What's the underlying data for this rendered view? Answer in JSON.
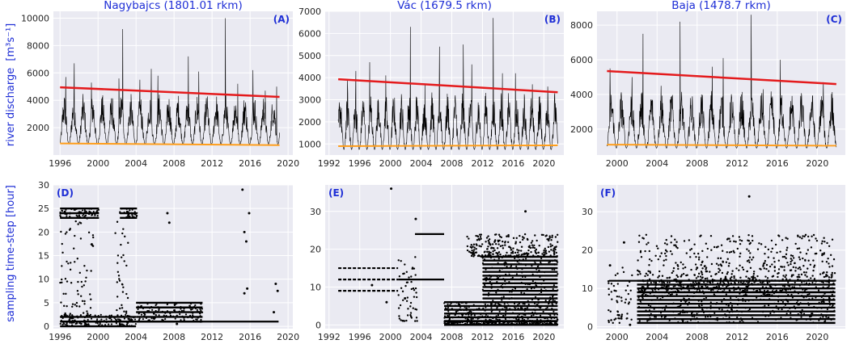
{
  "figure": {
    "row1_ylabel": "river discharge",
    "row1_ylabel_unit": "[m³s⁻¹]",
    "row2_ylabel": "sampling time-step  [hour]"
  },
  "colors": {
    "series": "#000000",
    "upper_trend": "#e41a1c",
    "lower_trend": "#ff9e1b",
    "title": "#1f2fd6"
  },
  "chart_data": [
    {
      "id": "A",
      "panel_label": "(A)",
      "type": "line",
      "title": "Nagybajcs  (1801.01 rkm)",
      "xlabel": "",
      "ylabel": "river discharge [m3s-1]",
      "xlim": [
        1995.3,
        2020.5
      ],
      "ylim": [
        0,
        10500
      ],
      "xticks": [
        1996,
        2000,
        2004,
        2008,
        2012,
        2016,
        2020
      ],
      "yticks": [
        2000,
        4000,
        6000,
        8000,
        10000
      ],
      "series": [
        {
          "name": "daily discharge",
          "color": "#000000",
          "x_range": [
            1996.0,
            2019.1
          ],
          "base_min": 800,
          "typical_high": 4500,
          "peaks": [
            [
              1996.6,
              5700
            ],
            [
              1997.5,
              6700
            ],
            [
              1999.3,
              5300
            ],
            [
              2002.2,
              5600
            ],
            [
              2002.6,
              9200
            ],
            [
              2004.4,
              5500
            ],
            [
              2005.6,
              6300
            ],
            [
              2006.3,
              5800
            ],
            [
              2009.5,
              7200
            ],
            [
              2010.6,
              6100
            ],
            [
              2013.4,
              10000
            ],
            [
              2014.7,
              5200
            ],
            [
              2016.3,
              6200
            ],
            [
              2017.6,
              4700
            ],
            [
              2018.8,
              5000
            ]
          ]
        },
        {
          "name": "upper trend",
          "color": "#e41a1c",
          "x": [
            1996.0,
            2019.1
          ],
          "y": [
            4950,
            4250
          ]
        },
        {
          "name": "lower trend",
          "color": "#ff9e1b",
          "x": [
            1996.0,
            2019.1
          ],
          "y": [
            850,
            720
          ]
        }
      ]
    },
    {
      "id": "B",
      "panel_label": "(B)",
      "type": "line",
      "title": "Vác  (1679.5 rkm)",
      "xlabel": "",
      "ylabel": "",
      "xlim": [
        1991.5,
        2022.6
      ],
      "ylim": [
        500,
        7000
      ],
      "xticks": [
        1992,
        1996,
        2000,
        2004,
        2008,
        2012,
        2016,
        2020
      ],
      "yticks": [
        1000,
        2000,
        3000,
        4000,
        5000,
        6000,
        7000
      ],
      "series": [
        {
          "name": "daily discharge",
          "color": "#000000",
          "x_range": [
            1993.2,
            2021.8
          ],
          "base_min": 750,
          "typical_high": 3400,
          "peaks": [
            [
              1994.4,
              3900
            ],
            [
              1995.5,
              4300
            ],
            [
              1997.3,
              4700
            ],
            [
              1999.4,
              4100
            ],
            [
              2002.6,
              6300
            ],
            [
              2004.5,
              3700
            ],
            [
              2006.4,
              5400
            ],
            [
              2009.5,
              5500
            ],
            [
              2010.6,
              4600
            ],
            [
              2013.4,
              6700
            ],
            [
              2014.6,
              4200
            ],
            [
              2016.3,
              4200
            ],
            [
              2018.5,
              3700
            ],
            [
              2020.5,
              3600
            ]
          ]
        },
        {
          "name": "upper trend",
          "color": "#e41a1c",
          "x": [
            1993.2,
            2021.8
          ],
          "y": [
            3930,
            3340
          ]
        },
        {
          "name": "lower trend",
          "color": "#ff9e1b",
          "x": [
            1993.2,
            2021.8
          ],
          "y": [
            900,
            940
          ]
        }
      ]
    },
    {
      "id": "C",
      "panel_label": "(C)",
      "type": "line",
      "title": "Baja  (1478.7 rkm)",
      "xlabel": "",
      "ylabel": "",
      "xlim": [
        1998.0,
        2022.8
      ],
      "ylim": [
        500,
        8800
      ],
      "xticks": [
        2000,
        2004,
        2008,
        2012,
        2016,
        2020
      ],
      "yticks": [
        2000,
        4000,
        6000,
        8000
      ],
      "series": [
        {
          "name": "daily discharge",
          "color": "#000000",
          "x_range": [
            1999.0,
            2021.9
          ],
          "base_min": 900,
          "typical_high": 4300,
          "peaks": [
            [
              1999.3,
              5500
            ],
            [
              2001.5,
              5000
            ],
            [
              2002.6,
              7500
            ],
            [
              2004.4,
              4500
            ],
            [
              2006.3,
              8200
            ],
            [
              2009.5,
              5600
            ],
            [
              2010.6,
              6100
            ],
            [
              2013.4,
              8600
            ],
            [
              2014.6,
              4300
            ],
            [
              2016.3,
              6000
            ],
            [
              2020.6,
              4700
            ]
          ]
        },
        {
          "name": "upper trend",
          "color": "#e41a1c",
          "x": [
            1999.0,
            2021.9
          ],
          "y": [
            5350,
            4600
          ]
        },
        {
          "name": "lower trend",
          "color": "#ff9e1b",
          "x": [
            1999.0,
            2021.9
          ],
          "y": [
            1100,
            1040
          ]
        }
      ]
    },
    {
      "id": "D",
      "panel_label": "(D)",
      "type": "scatter",
      "title": "",
      "xlabel": "",
      "ylabel": "sampling time-step [hour]",
      "xlim": [
        1995.3,
        2020.5
      ],
      "ylim": [
        -0.5,
        30
      ],
      "xticks": [
        1996,
        2000,
        2004,
        2008,
        2012,
        2016,
        2020
      ],
      "yticks": [
        0,
        5,
        10,
        15,
        20,
        25,
        30
      ],
      "series": [
        {
          "name": "sampling step clusters",
          "color": "#000000",
          "bands": [
            [
              1996.0,
              2000.1,
              23,
              25
            ],
            [
              2002.3,
              2004.1,
              23,
              25
            ],
            [
              1996.0,
              2004.0,
              0,
              2.5
            ],
            [
              2004.0,
              2011.0,
              1,
              5
            ],
            [
              2004.0,
              2019.0,
              1,
              1
            ]
          ],
          "scatter_regions": [
            [
              1996.0,
              1999.5,
              2,
              23
            ],
            [
              2001.6,
              2003.2,
              2,
              23
            ]
          ],
          "points": [
            [
              2007.3,
              24
            ],
            [
              2007.5,
              22
            ],
            [
              2008.3,
              0.5
            ],
            [
              2015.2,
              29
            ],
            [
              2015.4,
              20
            ],
            [
              2015.6,
              18
            ],
            [
              2015.9,
              24
            ],
            [
              2015.7,
              8
            ],
            [
              2015.4,
              7
            ],
            [
              2018.7,
              9
            ],
            [
              2018.5,
              3
            ],
            [
              2018.9,
              7.5
            ],
            [
              2010.8,
              1
            ]
          ]
        }
      ]
    },
    {
      "id": "E",
      "panel_label": "(E)",
      "type": "scatter",
      "title": "",
      "xlabel": "",
      "ylabel": "",
      "xlim": [
        1991.5,
        2022.6
      ],
      "ylim": [
        -1,
        37
      ],
      "xticks": [
        1992,
        1996,
        2000,
        2004,
        2008,
        2012,
        2016,
        2020
      ],
      "yticks": [
        0,
        10,
        20,
        30
      ],
      "series": [
        {
          "name": "sampling step clusters",
          "color": "#000000",
          "dashed_levels": [
            [
              1993.2,
              2001.0,
              15
            ],
            [
              1993.2,
              2001.0,
              12
            ],
            [
              1993.2,
              2001.0,
              9
            ]
          ],
          "bands": [
            [
              2001.0,
              2007.0,
              12,
              12
            ],
            [
              2003.2,
              2007.0,
              24,
              24
            ],
            [
              2007.0,
              2021.8,
              1,
              6
            ],
            [
              2007.0,
              2021.8,
              0,
              1
            ],
            [
              2012.0,
              2021.8,
              6,
              18
            ]
          ],
          "scatter_regions": [
            [
              2001.0,
              2003.5,
              1,
              20
            ],
            [
              2010.0,
              2021.8,
              18,
              24
            ]
          ],
          "points": [
            [
              2000.1,
              36
            ],
            [
              2003.3,
              28
            ],
            [
              2017.6,
              30
            ],
            [
              1999.5,
              6
            ],
            [
              1997.6,
              10.5
            ],
            [
              2001.9,
              7
            ]
          ]
        }
      ]
    },
    {
      "id": "F",
      "panel_label": "(F)",
      "type": "scatter",
      "title": "",
      "xlabel": "",
      "ylabel": "",
      "xlim": [
        1998.0,
        2022.8
      ],
      "ylim": [
        -0.5,
        37
      ],
      "xticks": [
        2000,
        2004,
        2008,
        2012,
        2016,
        2020
      ],
      "yticks": [
        0,
        10,
        20,
        30
      ],
      "series": [
        {
          "name": "sampling step clusters",
          "color": "#000000",
          "bands": [
            [
              1999.2,
              2002.0,
              12,
              12
            ],
            [
              2002.0,
              2021.8,
              1,
              9
            ],
            [
              2002.0,
              2021.8,
              9,
              12
            ]
          ],
          "scatter_regions": [
            [
              1999.0,
              2001.5,
              1,
              16
            ],
            [
              2002.0,
              2021.8,
              12,
              24
            ]
          ],
          "points": [
            [
              2013.2,
              34
            ],
            [
              2000.7,
              22
            ],
            [
              1999.3,
              16
            ],
            [
              2000.2,
              3
            ],
            [
              2001.3,
              0.5
            ]
          ]
        }
      ]
    }
  ]
}
